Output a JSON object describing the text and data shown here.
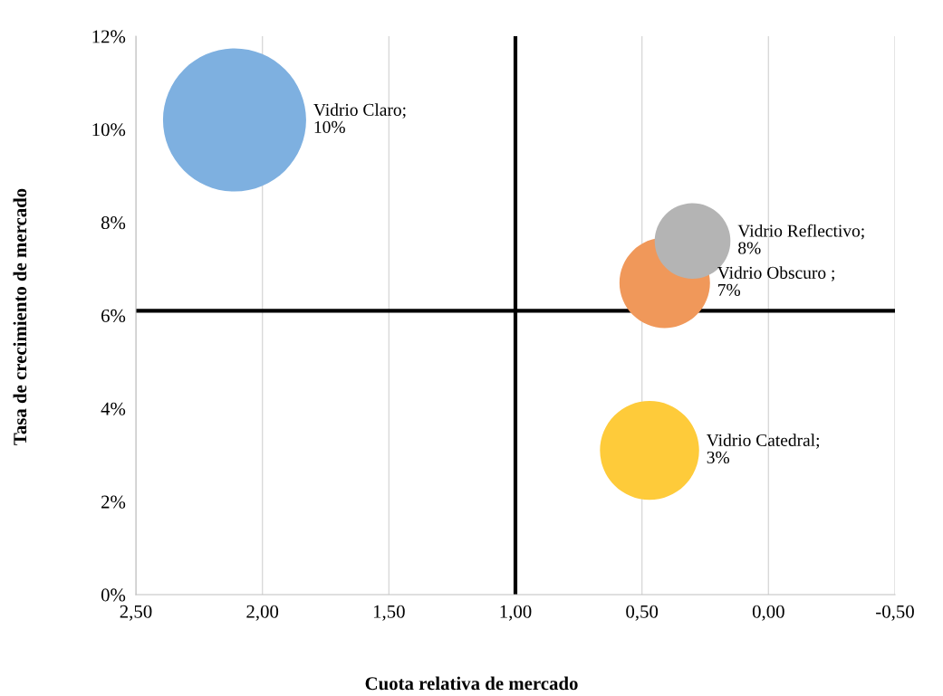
{
  "chart_data": {
    "type": "bubble",
    "xlabel": "Cuota relativa de mercado",
    "ylabel": "Tasa de crecimiento de mercado",
    "series": [
      {
        "color": "#7eb0e0",
        "x": [
          2.11
        ],
        "values": [
          10.2
        ],
        "sizes": [
          1
        ],
        "value_labels": [
          "Vidrio Claro;\n10%"
        ]
      },
      {
        "color": "#f0985a",
        "x": [
          0.41
        ],
        "values": [
          6.7
        ],
        "sizes": [
          0.4
        ],
        "value_labels": [
          "Vidrio Obscuro ;\n7%"
        ]
      },
      {
        "color": "#b4b4b4",
        "x": [
          0.3
        ],
        "values": [
          7.6
        ],
        "sizes": [
          0.28
        ],
        "value_labels": [
          "Vidrio Reflectivo;\n8%"
        ]
      },
      {
        "color": "#fecb3a",
        "x": [
          0.47
        ],
        "values": [
          3.1
        ],
        "sizes": [
          0.48
        ],
        "value_labels": [
          "Vidrio Catedral;\n3%"
        ]
      }
    ],
    "xlim": [
      2.5,
      -0.5
    ],
    "xticks": [
      {
        "value": 2.5,
        "label": "2,50"
      },
      {
        "value": 2.0,
        "label": "2,00"
      },
      {
        "value": 1.5,
        "label": "1,50"
      },
      {
        "value": 1.0,
        "label": "1,00"
      },
      {
        "value": 0.5,
        "label": "0,50"
      },
      {
        "value": 0.0,
        "label": "0,00"
      },
      {
        "value": -0.5,
        "label": "-0,50"
      }
    ],
    "ylim": [
      0,
      12
    ],
    "yticks": [
      {
        "value": 0,
        "label": "0%"
      },
      {
        "value": 2,
        "label": "2%"
      },
      {
        "value": 4,
        "label": "4%"
      },
      {
        "value": 6,
        "label": "6%"
      },
      {
        "value": 8,
        "label": "8%"
      },
      {
        "value": 10,
        "label": "10%"
      },
      {
        "value": 12,
        "label": "12%"
      }
    ],
    "ref_lines": [
      {
        "axis": "x",
        "value": 1.0,
        "color": "#000000"
      },
      {
        "axis": "y",
        "value": 6.1,
        "color": "#000000"
      }
    ],
    "grid": "x"
  }
}
